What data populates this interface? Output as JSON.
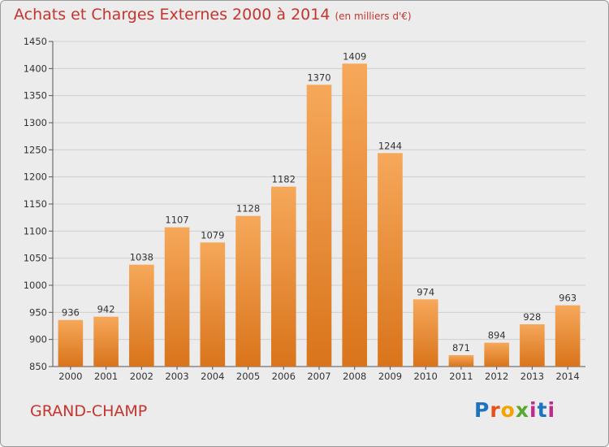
{
  "header": {
    "title": "Achats et Charges Externes 2000 à 2014",
    "unit": "(en milliers d'€)"
  },
  "footer": {
    "commune": "GRAND-CHAMP",
    "brand": "Proxiti",
    "brand_colors": [
      "#1e73be",
      "#e94e1b",
      "#f4a300",
      "#5aa832",
      "#c02a8f",
      "#1e73be",
      "#c02a8f"
    ]
  },
  "colors": {
    "background": "#ececec",
    "bar_top": "#f6a85a",
    "bar_bottom": "#d9741b",
    "title": "#c3352e",
    "grid": "#cfcfcf"
  },
  "chart_data": {
    "type": "bar",
    "title": "Achats et Charges Externes 2000 à 2014",
    "categories": [
      "2000",
      "2001",
      "2002",
      "2003",
      "2004",
      "2005",
      "2006",
      "2007",
      "2008",
      "2009",
      "2010",
      "2011",
      "2012",
      "2013",
      "2014"
    ],
    "values": [
      936,
      942,
      1038,
      1107,
      1079,
      1128,
      1182,
      1370,
      1409,
      1244,
      974,
      871,
      894,
      928,
      963
    ],
    "ylim": [
      850,
      1450
    ],
    "yticks": [
      850,
      900,
      950,
      1000,
      1050,
      1100,
      1150,
      1200,
      1250,
      1300,
      1350,
      1400,
      1450
    ],
    "grid": "horizontal",
    "xlabel": "",
    "ylabel": ""
  }
}
